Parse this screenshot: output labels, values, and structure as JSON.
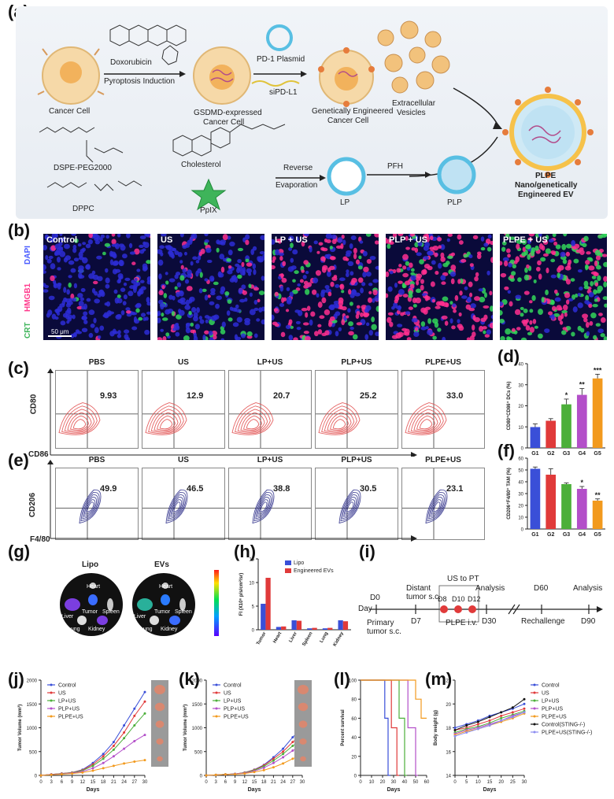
{
  "panels": {
    "a": "(a)",
    "b": "(b)",
    "c": "(c)",
    "d": "(d)",
    "e": "(e)",
    "f": "(f)",
    "g": "(g)",
    "h": "(h)",
    "i": "(i)",
    "j": "(j)",
    "k": "(k)",
    "l": "(l)",
    "m": "(m)"
  },
  "schematic": {
    "doxorubicin": "Doxorubicin",
    "pyroptosis": "Pyroptosis Induction",
    "pd1": "PD-1 Plasmid",
    "sipdl1": "siPD-L1",
    "cancer_cell": "Cancer Cell",
    "gsdmd": "GSDMD-expressed",
    "gsdmd2": "Cancer Cell",
    "engineered": "Genetically Engineered",
    "engineered2": "Cancer Cell",
    "ev": "Extracellular",
    "ev2": "Vesicles",
    "dspe": "DSPE-PEG2000",
    "cholesterol": "Cholesterol",
    "reverse": "Reverse",
    "evaporation": "Evaporation",
    "pfh": "PFH",
    "lp": "LP",
    "plp": "PLP",
    "plpe": "PLPE",
    "plpe2": "Nano/genetically",
    "plpe3": "Engineered EV",
    "dppc": "DPPC",
    "ppix": "PpIX",
    "pdx": "PLPE"
  },
  "micro": {
    "labels": [
      "Control",
      "US",
      "LP + US",
      "PLP + US",
      "PLPE + US"
    ],
    "dapi": "DAPI",
    "hmgb1": "HMGB1",
    "crt": "CRT",
    "scale": "50 μm"
  },
  "flow_c": {
    "titles": [
      "PBS",
      "US",
      "LP+US",
      "PLP+US",
      "PLPE+US"
    ],
    "values": [
      "9.93",
      "12.9",
      "20.7",
      "25.2",
      "33.0"
    ],
    "yaxis": "CD80",
    "xaxis": "CD86"
  },
  "flow_e": {
    "titles": [
      "PBS",
      "US",
      "LP+US",
      "PLP+US",
      "PLPE+US"
    ],
    "values": [
      "49.9",
      "46.5",
      "38.8",
      "30.5",
      "23.1"
    ],
    "yaxis": "CD206",
    "xaxis": "F4/80"
  },
  "panel_g": {
    "lipo": "Lipo",
    "evs": "EVs",
    "organs": [
      "Heart",
      "Tumor",
      "Liver",
      "Spleen",
      "Lung",
      "Kidney"
    ]
  },
  "panel_i": {
    "d0": "D0",
    "day": "Day",
    "primary": "Primary",
    "primary2": "tumor s.c.",
    "distant": "Distant",
    "distant2": "tumor s.c.",
    "d7": "D7",
    "us_pt": "US to PT",
    "d8": "D8",
    "d10": "D10",
    "d12": "D12",
    "plpe_iv": "PLPE i.v.",
    "analysis": "Analysis",
    "d30": "D30",
    "d60": "D60",
    "rechallenge": "Rechallenge",
    "analysis2": "Analysis",
    "d90": "D90"
  },
  "chart_data": [
    {
      "id": "d",
      "type": "bar",
      "ylabel": "CD80⁺CD86⁺ DCs (%)",
      "categories": [
        "G1",
        "G2",
        "G3",
        "G4",
        "G5"
      ],
      "values": [
        9.9,
        12.9,
        20.7,
        25.2,
        33.0
      ],
      "errors": [
        1.5,
        1.0,
        2.5,
        3.0,
        2.0
      ],
      "colors": [
        "#3a4fd8",
        "#e03a3a",
        "#4caf3a",
        "#b34fc9",
        "#f29a1e"
      ],
      "sig": [
        "",
        "",
        "*",
        "**",
        "***"
      ],
      "ylim": [
        0,
        40
      ],
      "yticks": [
        0,
        10,
        20,
        30,
        40
      ]
    },
    {
      "id": "f",
      "type": "bar",
      "ylabel": "CD206⁺F4/80⁺ TAM (%)",
      "categories": [
        "G1",
        "G2",
        "G3",
        "G4",
        "G5"
      ],
      "values": [
        51,
        46,
        38,
        34,
        24
      ],
      "errors": [
        1.5,
        5,
        1,
        2,
        1.5
      ],
      "colors": [
        "#3a4fd8",
        "#e03a3a",
        "#4caf3a",
        "#b34fc9",
        "#f29a1e"
      ],
      "sig": [
        "",
        "",
        "",
        "*",
        "**"
      ],
      "ylim": [
        0,
        60
      ],
      "yticks": [
        0,
        10,
        20,
        30,
        40,
        50,
        60
      ]
    },
    {
      "id": "h",
      "type": "bar",
      "ylabel": "FI (X10⁶ p/s/cm²/sr)",
      "categories": [
        "Tumor",
        "Heart",
        "Liver",
        "Spleen",
        "Lung",
        "Kidney"
      ],
      "series": [
        {
          "name": "Lipo",
          "color": "#3a4fd8",
          "values": [
            5.5,
            0.6,
            2.0,
            0.3,
            0.3,
            2.0
          ]
        },
        {
          "name": "Engineered EVs",
          "color": "#e03a3a",
          "values": [
            11.0,
            0.7,
            1.9,
            0.4,
            0.4,
            1.8
          ]
        }
      ],
      "ylim": [
        0,
        15
      ],
      "yticks": [
        0,
        5,
        10,
        15
      ]
    },
    {
      "id": "j",
      "type": "line",
      "xlabel": "Days",
      "ylabel": "Tumor Volume (mm³)",
      "x": [
        0,
        3,
        6,
        9,
        12,
        15,
        18,
        21,
        24,
        27,
        30
      ],
      "series": [
        {
          "name": "Control",
          "color": "#3a4fd8",
          "values": [
            0,
            20,
            40,
            60,
            120,
            260,
            450,
            700,
            1050,
            1400,
            1750
          ]
        },
        {
          "name": "US",
          "color": "#e03a3a",
          "values": [
            0,
            20,
            40,
            60,
            110,
            230,
            400,
            620,
            900,
            1250,
            1550
          ]
        },
        {
          "name": "LP+US",
          "color": "#4caf3a",
          "values": [
            0,
            20,
            35,
            55,
            100,
            200,
            350,
            540,
            780,
            1050,
            1300
          ]
        },
        {
          "name": "PLP+US",
          "color": "#b34fc9",
          "values": [
            0,
            20,
            30,
            50,
            80,
            150,
            260,
            400,
            560,
            720,
            850
          ]
        },
        {
          "name": "PLPE+US",
          "color": "#f29a1e",
          "values": [
            0,
            15,
            25,
            40,
            60,
            100,
            150,
            200,
            250,
            290,
            320
          ]
        }
      ],
      "ylim": [
        0,
        2000
      ],
      "yticks": [
        0,
        500,
        1000,
        1500,
        2000
      ],
      "xticks": [
        0,
        3,
        6,
        9,
        12,
        15,
        18,
        21,
        24,
        27,
        30
      ]
    },
    {
      "id": "k",
      "type": "line",
      "xlabel": "Days",
      "ylabel": "Tumor Volume (mm³)",
      "x": [
        0,
        3,
        6,
        9,
        12,
        15,
        18,
        21,
        24,
        27,
        30
      ],
      "series": [
        {
          "name": "Control",
          "color": "#3a4fd8",
          "values": [
            0,
            10,
            20,
            30,
            60,
            120,
            220,
            380,
            560,
            800,
            1000
          ]
        },
        {
          "name": "US",
          "color": "#e03a3a",
          "values": [
            0,
            10,
            20,
            30,
            60,
            115,
            210,
            350,
            500,
            700,
            860
          ]
        },
        {
          "name": "LP+US",
          "color": "#4caf3a",
          "values": [
            0,
            10,
            20,
            30,
            55,
            105,
            190,
            310,
            450,
            620,
            760
          ]
        },
        {
          "name": "PLP+US",
          "color": "#b34fc9",
          "values": [
            0,
            10,
            20,
            30,
            50,
            90,
            160,
            260,
            380,
            520,
            640
          ]
        },
        {
          "name": "PLPE+US",
          "color": "#f29a1e",
          "values": [
            0,
            10,
            20,
            25,
            40,
            70,
            110,
            170,
            250,
            350,
            440
          ]
        }
      ],
      "ylim": [
        0,
        2000
      ],
      "yticks": [
        0,
        500,
        1000,
        1500,
        2000
      ],
      "xticks": [
        0,
        3,
        6,
        9,
        12,
        15,
        18,
        21,
        24,
        27,
        30
      ]
    },
    {
      "id": "l",
      "type": "line",
      "xlabel": "Days",
      "ylabel": "Percent survival",
      "xticks": [
        0,
        10,
        20,
        30,
        40,
        50,
        60
      ],
      "yticks": [
        0,
        20,
        40,
        60,
        80,
        100
      ],
      "series": [
        {
          "name": "Control",
          "color": "#3a4fd8",
          "steps": [
            [
              0,
              100
            ],
            [
              22,
              100
            ],
            [
              22,
              60
            ],
            [
              25,
              60
            ],
            [
              25,
              0
            ],
            [
              27,
              0
            ]
          ]
        },
        {
          "name": "US",
          "color": "#e03a3a",
          "steps": [
            [
              0,
              100
            ],
            [
              28,
              100
            ],
            [
              28,
              50
            ],
            [
              33,
              50
            ],
            [
              33,
              0
            ],
            [
              35,
              0
            ]
          ]
        },
        {
          "name": "LP+US",
          "color": "#4caf3a",
          "steps": [
            [
              0,
              100
            ],
            [
              35,
              100
            ],
            [
              35,
              60
            ],
            [
              40,
              60
            ],
            [
              40,
              0
            ],
            [
              42,
              0
            ]
          ]
        },
        {
          "name": "PLP+US",
          "color": "#b34fc9",
          "steps": [
            [
              0,
              100
            ],
            [
              43,
              100
            ],
            [
              43,
              50
            ],
            [
              50,
              50
            ],
            [
              50,
              0
            ],
            [
              52,
              0
            ]
          ]
        },
        {
          "name": "PLPE+US",
          "color": "#f29a1e",
          "steps": [
            [
              0,
              100
            ],
            [
              50,
              100
            ],
            [
              50,
              80
            ],
            [
              55,
              80
            ],
            [
              55,
              60
            ],
            [
              60,
              60
            ]
          ]
        }
      ],
      "ylim": [
        0,
        100
      ],
      "xlim": [
        0,
        60
      ]
    },
    {
      "id": "m",
      "type": "line",
      "xlabel": "Days",
      "ylabel": "Body weight (g)",
      "x": [
        0,
        5,
        10,
        15,
        20,
        25,
        30
      ],
      "series": [
        {
          "name": "Control",
          "color": "#3a4fd8",
          "values": [
            18,
            18.3,
            18.6,
            19,
            19.3,
            19.6,
            20
          ]
        },
        {
          "name": "US",
          "color": "#e03a3a",
          "values": [
            17.8,
            18,
            18.3,
            18.6,
            19,
            19.3,
            19.6
          ]
        },
        {
          "name": "LP+US",
          "color": "#4caf3a",
          "values": [
            17.6,
            17.9,
            18.1,
            18.4,
            18.8,
            19.1,
            19.4
          ]
        },
        {
          "name": "PLP+US",
          "color": "#b34fc9",
          "values": [
            17.5,
            17.8,
            18,
            18.3,
            18.6,
            19,
            19.3
          ]
        },
        {
          "name": "PLPE+US",
          "color": "#f29a1e",
          "values": [
            17.4,
            17.7,
            17.9,
            18.2,
            18.5,
            18.8,
            19.2
          ]
        },
        {
          "name": "Control(STING-/-)",
          "color": "#111111",
          "values": [
            17.8,
            18.2,
            18.5,
            18.9,
            19.3,
            19.7,
            20.4
          ]
        },
        {
          "name": "PLPE+US(STING-/-)",
          "color": "#8c8cf0",
          "values": [
            17.3,
            17.6,
            17.9,
            18.2,
            18.6,
            18.9,
            19.3
          ]
        }
      ],
      "ylim": [
        14,
        22
      ],
      "yticks": [
        14,
        16,
        18,
        20,
        22
      ],
      "xticks": [
        0,
        5,
        10,
        15,
        20,
        25,
        30
      ]
    }
  ]
}
